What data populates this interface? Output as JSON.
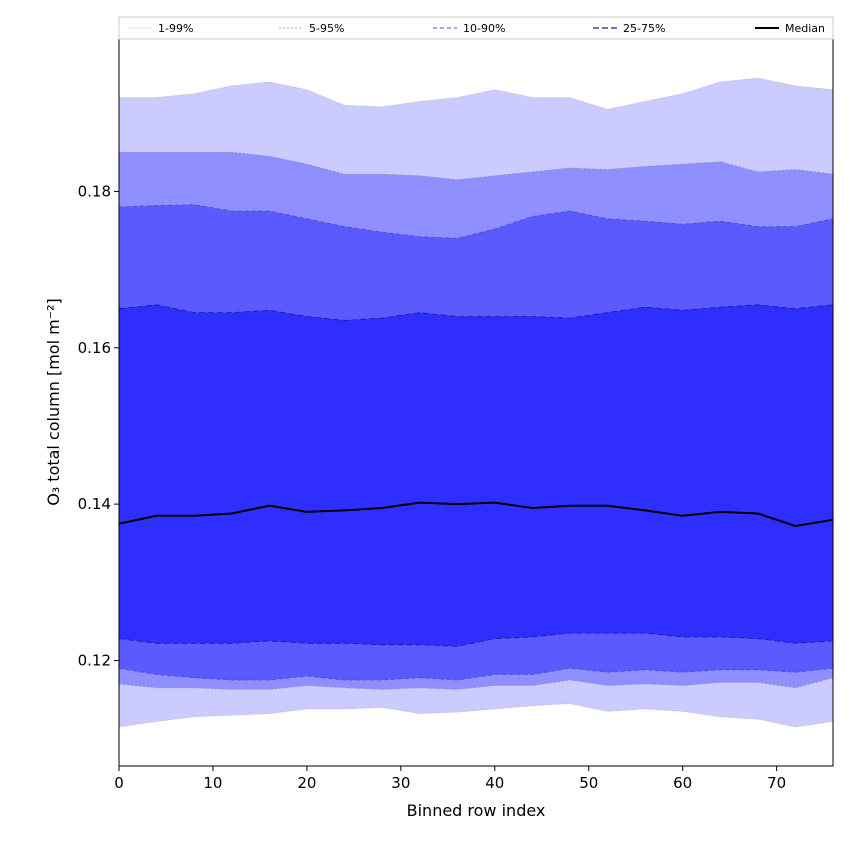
{
  "chart_data": {
    "type": "area",
    "xlabel": "Binned row index",
    "ylabel": "O₃ total column [mol m⁻²]",
    "xlim": [
      0,
      76
    ],
    "ylim": [
      0.1065,
      0.1995
    ],
    "x_ticks": [
      0,
      10,
      20,
      30,
      40,
      50,
      60,
      70
    ],
    "y_ticks": [
      0.12,
      0.14,
      0.16,
      0.18
    ],
    "x_tick_labels": [
      "0",
      "10",
      "20",
      "30",
      "40",
      "50",
      "60",
      "70"
    ],
    "y_tick_labels": [
      "0.12",
      "0.14",
      "0.16",
      "0.18"
    ],
    "x": [
      0,
      4,
      8,
      12,
      16,
      20,
      24,
      28,
      32,
      36,
      40,
      44,
      48,
      52,
      56,
      60,
      64,
      68,
      72,
      76
    ],
    "bands": [
      {
        "name": "1-99%",
        "fill": "#ffffff",
        "line_color": "#b0b0d8",
        "lower": [
          0.1115,
          0.1122,
          0.1128,
          0.113,
          0.1132,
          0.1138,
          0.1138,
          0.114,
          0.1132,
          0.1134,
          0.1138,
          0.1142,
          0.1145,
          0.1135,
          0.1138,
          0.1135,
          0.1128,
          0.1125,
          0.1115,
          0.1122
        ],
        "upper": [
          0.192,
          0.192,
          0.1925,
          0.1935,
          0.194,
          0.193,
          0.191,
          0.1908,
          0.1915,
          0.192,
          0.193,
          0.192,
          0.192,
          0.1905,
          0.1915,
          0.1925,
          0.194,
          0.1945,
          0.1935,
          0.193
        ]
      },
      {
        "name": "5-95%",
        "fill": "#cccbff",
        "line_color": "#8c8cd0",
        "lower": [
          0.117,
          0.1165,
          0.1165,
          0.1163,
          0.1163,
          0.1168,
          0.1165,
          0.1163,
          0.1165,
          0.1163,
          0.1168,
          0.1168,
          0.1175,
          0.1168,
          0.117,
          0.1168,
          0.1172,
          0.1172,
          0.1165,
          0.1178
        ],
        "upper": [
          0.185,
          0.185,
          0.185,
          0.185,
          0.1845,
          0.1835,
          0.1822,
          0.1822,
          0.182,
          0.1815,
          0.182,
          0.1825,
          0.183,
          0.1828,
          0.1832,
          0.1835,
          0.1838,
          0.1825,
          0.1828,
          0.1822
        ]
      },
      {
        "name": "10-90%",
        "fill": "#8f8fff",
        "line_color": "#4a4ac8",
        "lower": [
          0.119,
          0.1182,
          0.1178,
          0.1175,
          0.1175,
          0.118,
          0.1175,
          0.1175,
          0.1178,
          0.1175,
          0.1182,
          0.1182,
          0.119,
          0.1185,
          0.1188,
          0.1185,
          0.1188,
          0.1188,
          0.1185,
          0.119
        ],
        "upper": [
          0.178,
          0.1782,
          0.1783,
          0.1775,
          0.1775,
          0.1765,
          0.1755,
          0.1748,
          0.1742,
          0.174,
          0.1752,
          0.1768,
          0.1775,
          0.1765,
          0.1762,
          0.1758,
          0.1762,
          0.1755,
          0.1755,
          0.1765
        ]
      },
      {
        "name": "25-75%",
        "fill": "#5a5aff",
        "line_color": "#1a1aa0",
        "lower": [
          0.1228,
          0.1222,
          0.1222,
          0.1222,
          0.1225,
          0.1222,
          0.1222,
          0.122,
          0.122,
          0.1218,
          0.1228,
          0.123,
          0.1235,
          0.1235,
          0.1235,
          0.123,
          0.123,
          0.1228,
          0.1222,
          0.1225
        ],
        "upper": [
          0.165,
          0.1655,
          0.1645,
          0.1645,
          0.1648,
          0.164,
          0.1635,
          0.1638,
          0.1645,
          0.164,
          0.164,
          0.164,
          0.1638,
          0.1645,
          0.1652,
          0.1648,
          0.1652,
          0.1655,
          0.165,
          0.1655
        ]
      }
    ],
    "inner_fill": "#2e2eff",
    "series": [
      {
        "name": "Median",
        "color": "#000000",
        "values": [
          0.1375,
          0.1385,
          0.1385,
          0.1388,
          0.1398,
          0.139,
          0.1392,
          0.1395,
          0.1402,
          0.14,
          0.1402,
          0.1395,
          0.1398,
          0.1398,
          0.1392,
          0.1385,
          0.139,
          0.1388,
          0.1372,
          0.138
        ]
      }
    ],
    "legend": {
      "placement": "top",
      "entries": [
        "1-99%",
        "5-95%",
        "10-90%",
        "25-75%",
        "Median"
      ]
    },
    "grid": false
  }
}
